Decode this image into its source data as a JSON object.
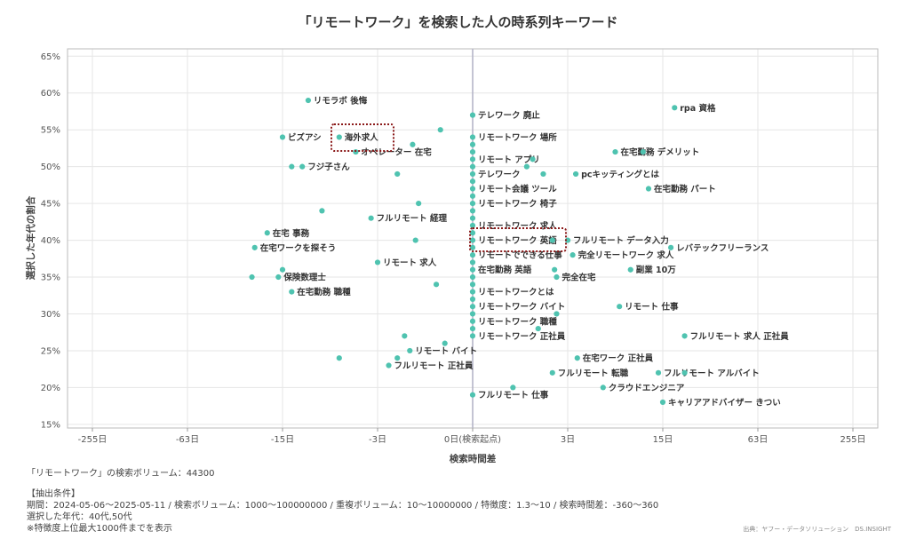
{
  "chart_data": {
    "type": "scatter",
    "title": "「リモートワーク」を検索した人の時系列キーワード",
    "xlabel": "検索時間差",
    "ylabel": "選択した年代の割合",
    "x_scale": "symlog",
    "x_ticks": [
      -255,
      -63,
      -15,
      -3,
      0,
      3,
      15,
      63,
      255
    ],
    "x_tick_labels": [
      "-255日",
      "-63日",
      "-15日",
      "-3日",
      "0日(検索起点)",
      "3日",
      "15日",
      "63日",
      "255日"
    ],
    "xlim": [
      -360,
      360
    ],
    "y_ticks": [
      15,
      20,
      25,
      30,
      35,
      40,
      45,
      50,
      55,
      60,
      65
    ],
    "y_tick_labels": [
      "15%",
      "20%",
      "25%",
      "30%",
      "35%",
      "40%",
      "45%",
      "50%",
      "55%",
      "60%",
      "65%"
    ],
    "ylim": [
      14.5,
      66
    ],
    "grid": true,
    "point_color": "#4fc3b0",
    "highlight_color": "#8b1a1a",
    "highlighted": [
      "海外求人",
      "リモートワーク 英語"
    ],
    "points": [
      {
        "x": -10,
        "y": 59,
        "label": "リモラボ 後悔"
      },
      {
        "x": -6,
        "y": 54,
        "label": "海外求人"
      },
      {
        "x": -15,
        "y": 54,
        "label": "ビズアシ"
      },
      {
        "x": -4.5,
        "y": 52,
        "label": "オペレーター 在宅"
      },
      {
        "x": -11,
        "y": 50,
        "label": "フジ子さん"
      },
      {
        "x": -13,
        "y": 50,
        "label": ""
      },
      {
        "x": -2,
        "y": 49,
        "label": ""
      },
      {
        "x": -1.4,
        "y": 53,
        "label": ""
      },
      {
        "x": -0.6,
        "y": 55,
        "label": ""
      },
      {
        "x": -1.2,
        "y": 45,
        "label": ""
      },
      {
        "x": -8,
        "y": 44,
        "label": ""
      },
      {
        "x": -3.4,
        "y": 43,
        "label": "フルリモート 経理"
      },
      {
        "x": -19,
        "y": 41,
        "label": "在宅 事務"
      },
      {
        "x": -23,
        "y": 39,
        "label": "在宅ワークを探そう"
      },
      {
        "x": -1.3,
        "y": 40,
        "label": ""
      },
      {
        "x": -3,
        "y": 37,
        "label": "リモート 求人"
      },
      {
        "x": -15,
        "y": 36,
        "label": ""
      },
      {
        "x": -16,
        "y": 35,
        "label": "保険数理士"
      },
      {
        "x": -24,
        "y": 35,
        "label": ""
      },
      {
        "x": -13,
        "y": 33,
        "label": "在宅勤務 職種"
      },
      {
        "x": -0.7,
        "y": 34,
        "label": ""
      },
      {
        "x": -1.7,
        "y": 27,
        "label": ""
      },
      {
        "x": -1.5,
        "y": 25,
        "label": "リモート バイト"
      },
      {
        "x": -0.5,
        "y": 26,
        "label": ""
      },
      {
        "x": -6,
        "y": 24,
        "label": ""
      },
      {
        "x": -2,
        "y": 24,
        "label": ""
      },
      {
        "x": -2.4,
        "y": 23,
        "label": "フルリモート 正社員"
      },
      {
        "x": 0,
        "y": 57,
        "label": "テレワーク 廃止"
      },
      {
        "x": 0,
        "y": 54,
        "label": "リモートワーク 場所"
      },
      {
        "x": 0,
        "y": 53,
        "label": ""
      },
      {
        "x": 0,
        "y": 52,
        "label": ""
      },
      {
        "x": 0,
        "y": 51,
        "label": "リモート アプリ"
      },
      {
        "x": 1.4,
        "y": 51,
        "label": ""
      },
      {
        "x": 0,
        "y": 50,
        "label": ""
      },
      {
        "x": 1.2,
        "y": 50,
        "label": ""
      },
      {
        "x": 0,
        "y": 49,
        "label": "テレワーク"
      },
      {
        "x": 1.8,
        "y": 49,
        "label": ""
      },
      {
        "x": 0,
        "y": 48,
        "label": ""
      },
      {
        "x": 0,
        "y": 47,
        "label": "リモート会議 ツール"
      },
      {
        "x": 0,
        "y": 46,
        "label": ""
      },
      {
        "x": 0,
        "y": 45,
        "label": "リモートワーク 椅子"
      },
      {
        "x": 0,
        "y": 44,
        "label": ""
      },
      {
        "x": 0,
        "y": 43,
        "label": ""
      },
      {
        "x": 0,
        "y": 42,
        "label": "リモートワーク 求人"
      },
      {
        "x": 0,
        "y": 41,
        "label": ""
      },
      {
        "x": 0,
        "y": 40,
        "label": "リモートワーク 英語"
      },
      {
        "x": 0,
        "y": 39,
        "label": ""
      },
      {
        "x": 0,
        "y": 38,
        "label": "リモートでできる仕事"
      },
      {
        "x": 0,
        "y": 37,
        "label": ""
      },
      {
        "x": 0,
        "y": 36,
        "label": "在宅勤務 英語"
      },
      {
        "x": 0,
        "y": 35,
        "label": ""
      },
      {
        "x": 0,
        "y": 34,
        "label": ""
      },
      {
        "x": 0,
        "y": 33,
        "label": "リモートワークとは"
      },
      {
        "x": 0,
        "y": 32,
        "label": ""
      },
      {
        "x": 0,
        "y": 31,
        "label": "リモートワーク バイト"
      },
      {
        "x": 0,
        "y": 30,
        "label": ""
      },
      {
        "x": 0,
        "y": 29,
        "label": "リモートワーク 職種"
      },
      {
        "x": 0,
        "y": 28,
        "label": ""
      },
      {
        "x": 0,
        "y": 27,
        "label": "リモートワーク 正社員"
      },
      {
        "x": 0,
        "y": 19,
        "label": "フルリモート 仕事"
      },
      {
        "x": 2.2,
        "y": 40,
        "label": ""
      },
      {
        "x": 3,
        "y": 40,
        "label": "フルリモート データ入力"
      },
      {
        "x": 3.3,
        "y": 38,
        "label": "完全リモートワーク 求人"
      },
      {
        "x": 2.3,
        "y": 36,
        "label": ""
      },
      {
        "x": 2.4,
        "y": 35,
        "label": "完全在宅"
      },
      {
        "x": 2.4,
        "y": 30,
        "label": ""
      },
      {
        "x": 1.6,
        "y": 28,
        "label": ""
      },
      {
        "x": 0.8,
        "y": 20,
        "label": ""
      },
      {
        "x": 3.5,
        "y": 49,
        "label": "pcキッティングとは"
      },
      {
        "x": 7,
        "y": 52,
        "label": "在宅勤務 デメリット"
      },
      {
        "x": 11,
        "y": 52,
        "label": ""
      },
      {
        "x": 12,
        "y": 47,
        "label": "在宅勤務 パート"
      },
      {
        "x": 18,
        "y": 58,
        "label": "rpa 資格"
      },
      {
        "x": 17,
        "y": 39,
        "label": "レバテックフリーランス"
      },
      {
        "x": 9,
        "y": 36,
        "label": "副業 10万"
      },
      {
        "x": 7.5,
        "y": 31,
        "label": "リモート 仕事"
      },
      {
        "x": 21,
        "y": 27,
        "label": "フルリモート 求人 正社員"
      },
      {
        "x": 3.6,
        "y": 24,
        "label": "在宅ワーク 正社員"
      },
      {
        "x": 2.2,
        "y": 22,
        "label": "フルリモート 転職"
      },
      {
        "x": 14,
        "y": 22,
        "label": "フルリモート アルバイト"
      },
      {
        "x": 21,
        "y": 22,
        "label": ""
      },
      {
        "x": 5.7,
        "y": 20,
        "label": "クラウドエンジニア"
      },
      {
        "x": 15,
        "y": 18,
        "label": "キャリアアドバイザー きつい"
      }
    ]
  },
  "footer": {
    "volume": "「リモートワーク」の検索ボリューム：44300",
    "conditions_heading": "【抽出条件】",
    "conditions": "期間：2024-05-06～2025-05-11 / 検索ボリューム：1000～100000000 / 重複ボリューム：10～10000000 / 特徴度：1.3～10 / 検索時間差：-360～360",
    "age": "選択した年代：40代,50代",
    "note": "※特徴度上位最大1000件までを表示",
    "credit": "出典：ヤフー・データソリューション　DS.INSIGHT"
  }
}
